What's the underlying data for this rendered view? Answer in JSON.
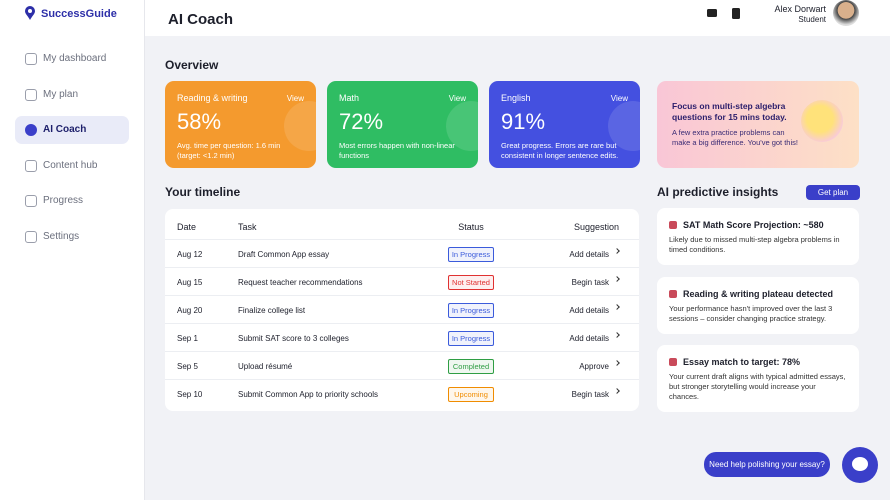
{
  "brand": "SuccessGuide",
  "nav": {
    "items": [
      "My dashboard",
      "My plan",
      "AI Coach",
      "Content hub",
      "Progress",
      "Settings"
    ],
    "active": 2
  },
  "header": {
    "title": "AI Coach",
    "user_name": "Alex Dorwart",
    "user_role": "Student"
  },
  "overview": {
    "title": "Overview",
    "cards": [
      {
        "title": "Reading & writing",
        "link": "View",
        "value": "58%",
        "text": "Avg. time per question: 1.6 min (target: <1.2 min)",
        "color": "#f49a2e"
      },
      {
        "title": "Math",
        "link": "View",
        "value": "72%",
        "text": "Most errors happen with non-linear functions",
        "color": "#2fbd63"
      },
      {
        "title": "English",
        "link": "View",
        "value": "91%",
        "text": "Great progress. Errors are rare but consistent in longer sentence edits.",
        "color": "#4450e0"
      }
    ],
    "promo": {
      "title": "Focus on multi-step algebra questions for 15 mins today.",
      "text": "A few extra practice problems can make a big difference. You've got this!"
    }
  },
  "timeline": {
    "title": "Your timeline",
    "columns": [
      "Date",
      "Task",
      "Status",
      "Suggestion"
    ],
    "rows": [
      {
        "date": "Aug 12",
        "task": "Draft Common App essay",
        "status": "In Progress",
        "status_color": "#3b5bdb",
        "action": "Add details"
      },
      {
        "date": "Aug 15",
        "task": "Request teacher recommendations",
        "status": "Not Started",
        "status_color": "#e03131",
        "action": "Begin task"
      },
      {
        "date": "Aug 20",
        "task": "Finalize college list",
        "status": "In Progress",
        "status_color": "#3b5bdb",
        "action": "Add details"
      },
      {
        "date": "Sep 1",
        "task": "Submit SAT score to 3 colleges",
        "status": "In Progress",
        "status_color": "#3b5bdb",
        "action": "Add details"
      },
      {
        "date": "Sep 5",
        "task": "Upload résumé",
        "status": "Completed",
        "status_color": "#2f9e44",
        "action": "Approve"
      },
      {
        "date": "Sep 10",
        "task": "Submit Common App to priority schools",
        "status": "Upcoming",
        "status_color": "#f08c00",
        "action": "Begin task"
      }
    ]
  },
  "insights": {
    "title": "AI predictive insights",
    "button": "Get plan",
    "items": [
      {
        "title": "SAT Math Score Projection: ~580",
        "text": "Likely due to missed multi-step algebra problems in timed conditions."
      },
      {
        "title": "Reading & writing plateau detected",
        "text": "Your performance hasn't improved over the last 3 sessions – consider changing practice strategy."
      },
      {
        "title": "Essay match to target: 78%",
        "text": "Your current draft aligns with typical admitted essays, but stronger storytelling would increase your chances."
      }
    ]
  },
  "chat": {
    "prompt": "Need help polishing your essay?"
  }
}
